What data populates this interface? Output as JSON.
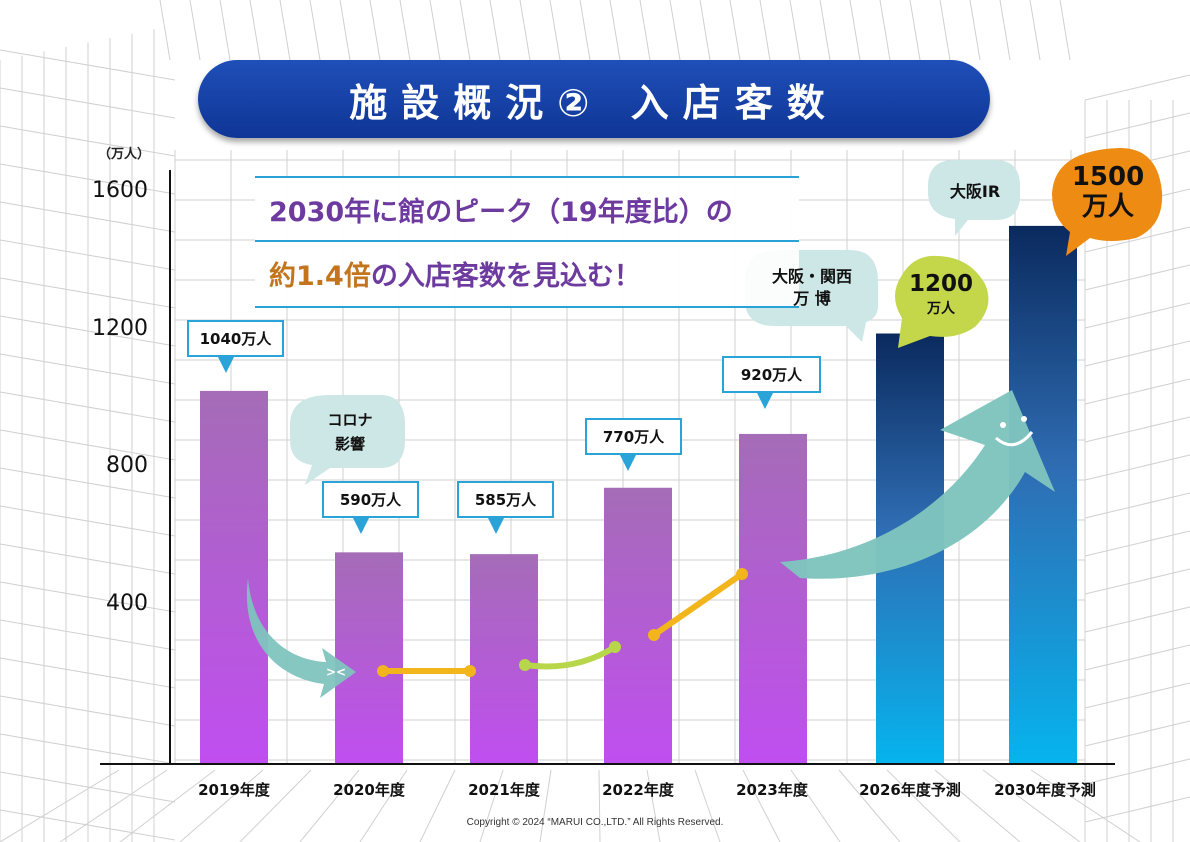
{
  "title": "施設概況② 入店客数",
  "unit_label": "（万人）",
  "headline": {
    "line1": "2030年に館のピーク（19年度比）の",
    "line2_highlight": "約1.4倍",
    "line2_rest": "の入店客数を見込む！"
  },
  "annotations": {
    "covid": [
      "コロナ",
      "影響"
    ],
    "expo": [
      "大阪・関西",
      "万 博"
    ],
    "ir": "大阪IR"
  },
  "copyright": "Copyright © 2024 “MARUI CO.,LTD.” All Rights Reserved.",
  "colors": {
    "title_bg": "#1a46a8",
    "bar_actual_top": "#a56cb7",
    "bar_actual_bottom": "#c04ef0",
    "bar_forecast_top": "#0a2a5e",
    "bar_forecast_bottom": "#06b4ee",
    "label_border": "#2aa3d8",
    "bubble_teal": "#cde6e6",
    "bubble_green": "#c4d64a",
    "bubble_orange": "#ee8b12",
    "arrow_teal": "#7fc4be",
    "connector_orange": "#f2b51c",
    "connector_green": "#b8d64a"
  },
  "chart_data": {
    "type": "bar",
    "title": "",
    "xlabel": "",
    "ylabel": "（万人）",
    "categories": [
      "2019年度",
      "2020年度",
      "2021年度",
      "2022年度",
      "2023年度",
      "2026年度予測",
      "2030年度予測"
    ],
    "values": [
      1040,
      590,
      585,
      770,
      920,
      1200,
      1500
    ],
    "data_labels": [
      "1040万人",
      "590万人",
      "585万人",
      "770万人",
      "920万人",
      "1200万人",
      "1500万人"
    ],
    "forecast": [
      false,
      false,
      false,
      false,
      false,
      true,
      true
    ],
    "yticks": [
      400,
      800,
      1200,
      1600
    ],
    "ylim": [
      0,
      1600
    ],
    "grid": false,
    "legend": "none"
  }
}
